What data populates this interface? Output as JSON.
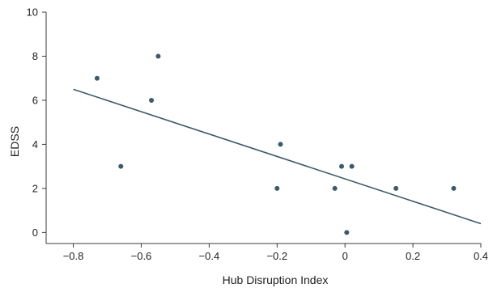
{
  "chart_data": {
    "type": "scatter",
    "xlabel": "Hub Disruption Index",
    "ylabel": "EDSS",
    "xlim": [
      -0.88,
      0.4
    ],
    "ylim": [
      -0.5,
      10
    ],
    "x_ticks": [
      -0.8,
      -0.6,
      -0.4,
      -0.2,
      0,
      0.2,
      0.4
    ],
    "x_tick_labels": [
      "−0.8",
      "−0.6",
      "−0.4",
      "−0.2",
      "0",
      "0.2",
      "0.4"
    ],
    "y_ticks": [
      0,
      2,
      4,
      6,
      8,
      10
    ],
    "y_tick_labels": [
      "0",
      "2",
      "4",
      "6",
      "8",
      "10"
    ],
    "grid": false,
    "legend": "none",
    "points": [
      {
        "x": -0.73,
        "y": 7
      },
      {
        "x": -0.66,
        "y": 3
      },
      {
        "x": -0.57,
        "y": 6
      },
      {
        "x": -0.55,
        "y": 8
      },
      {
        "x": -0.2,
        "y": 2
      },
      {
        "x": -0.19,
        "y": 4
      },
      {
        "x": -0.03,
        "y": 2
      },
      {
        "x": -0.01,
        "y": 3
      },
      {
        "x": 0.005,
        "y": 0
      },
      {
        "x": 0.02,
        "y": 3
      },
      {
        "x": 0.15,
        "y": 2
      },
      {
        "x": 0.32,
        "y": 2
      }
    ],
    "trendline": {
      "x": [
        -0.8,
        0.4
      ],
      "y": [
        6.5,
        0.4
      ]
    },
    "colors": {
      "marker": "#3d5a6b",
      "line": "#3d5a6b",
      "axis": "#3b3b3b"
    }
  }
}
